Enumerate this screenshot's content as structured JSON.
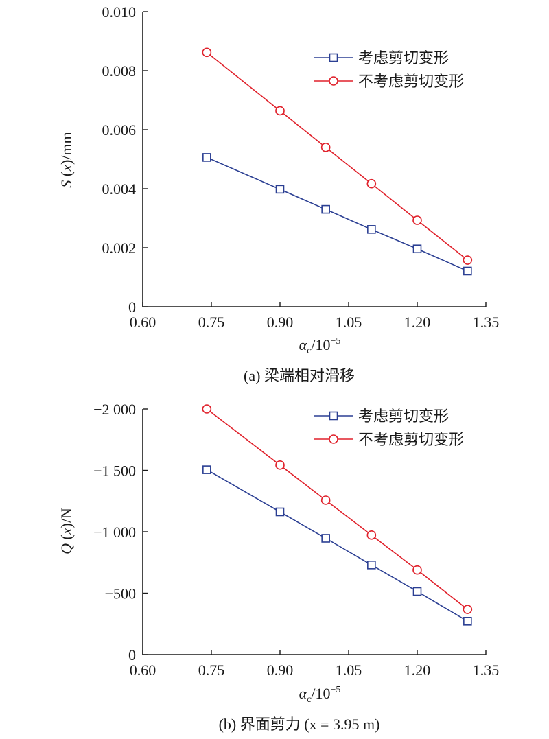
{
  "chart_data": [
    {
      "type": "line",
      "caption": "(a) 梁端相对滑移",
      "ylabel": {
        "main": "S",
        "arg": "x",
        "unit": "mm"
      },
      "xlabel": {
        "sym": "α",
        "sub": "c",
        "unit": "10",
        "exp": "−5"
      },
      "xlim": [
        0.6,
        1.35
      ],
      "ylim": [
        0,
        0.01
      ],
      "x_ticks": [
        {
          "value": 0.6,
          "label": "0.60"
        },
        {
          "value": 0.75,
          "label": "0.75"
        },
        {
          "value": 0.9,
          "label": "0.90"
        },
        {
          "value": 1.05,
          "label": "1.05"
        },
        {
          "value": 1.2,
          "label": "1.20"
        },
        {
          "value": 1.35,
          "label": "1.35"
        }
      ],
      "y_ticks": [
        {
          "value": 0,
          "label": "0"
        },
        {
          "value": 0.002,
          "label": "0.002"
        },
        {
          "value": 0.004,
          "label": "0.004"
        },
        {
          "value": 0.006,
          "label": "0.006"
        },
        {
          "value": 0.008,
          "label": "0.008"
        },
        {
          "value": 0.01,
          "label": "0.010"
        }
      ],
      "x": [
        0.74,
        0.9,
        1.0,
        1.1,
        1.2,
        1.31
      ],
      "series": [
        {
          "name": "考虑剪切变形",
          "color": "#2b3f93",
          "marker": "square",
          "values": [
            0.00506,
            0.00398,
            0.0033,
            0.00262,
            0.00196,
            0.00121
          ]
        },
        {
          "name": "不考虑剪切变形",
          "color": "#e0212b",
          "marker": "circle",
          "values": [
            0.00862,
            0.00664,
            0.0054,
            0.00417,
            0.00293,
            0.00158
          ]
        }
      ],
      "legend_position": "top-right",
      "grid": false
    },
    {
      "type": "line",
      "caption": "(b) 界面剪力 (x = 3.95 m)",
      "ylabel": {
        "main": "Q",
        "arg": "x",
        "unit": "N"
      },
      "xlabel": {
        "sym": "α",
        "sub": "c",
        "unit": "10",
        "exp": "−5"
      },
      "xlim": [
        0.6,
        1.35
      ],
      "ylim": [
        0,
        -2000
      ],
      "x_ticks": [
        {
          "value": 0.6,
          "label": "0.60"
        },
        {
          "value": 0.75,
          "label": "0.75"
        },
        {
          "value": 0.9,
          "label": "0.90"
        },
        {
          "value": 1.05,
          "label": "1.05"
        },
        {
          "value": 1.2,
          "label": "1.20"
        },
        {
          "value": 1.35,
          "label": "1.35"
        }
      ],
      "y_ticks": [
        {
          "value": 0,
          "label": "0"
        },
        {
          "value": -500,
          "label": "−500"
        },
        {
          "value": -1000,
          "label": "−1 000"
        },
        {
          "value": -1500,
          "label": "−1 500"
        },
        {
          "value": -2000,
          "label": "−2 000"
        }
      ],
      "x": [
        0.74,
        0.9,
        1.0,
        1.1,
        1.2,
        1.31
      ],
      "series": [
        {
          "name": "考虑剪切变形",
          "color": "#2b3f93",
          "marker": "square",
          "values": [
            -1505,
            -1162,
            -947,
            -730,
            -514,
            -272
          ]
        },
        {
          "name": "不考虑剪切变形",
          "color": "#e0212b",
          "marker": "circle",
          "values": [
            -2000,
            -1543,
            -1257,
            -973,
            -689,
            -368
          ]
        }
      ],
      "legend_position": "top-right",
      "grid": false
    }
  ]
}
